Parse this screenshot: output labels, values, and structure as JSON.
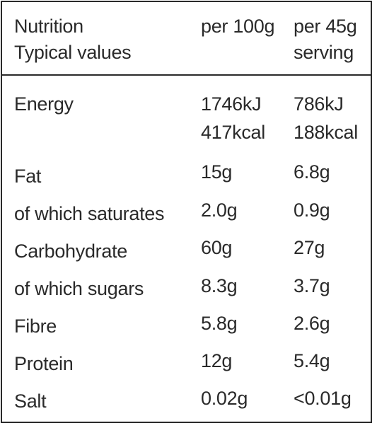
{
  "header": {
    "title_line1": "Nutrition",
    "title_line2": "Typical values",
    "col_per100_line1": "per 100g",
    "col_serving_line1": "per 45g",
    "col_serving_line2": "serving"
  },
  "rows": [
    {
      "label": "Energy",
      "per100": "1746kJ",
      "per100_extra": "417kcal",
      "serving": "786kJ",
      "serving_extra": "188kcal"
    },
    {
      "label": "Fat",
      "per100": "15g",
      "serving": "6.8g"
    },
    {
      "label": "of which saturates",
      "per100": "2.0g",
      "serving": "0.9g"
    },
    {
      "label": "Carbohydrate",
      "per100": "60g",
      "serving": "27g"
    },
    {
      "label": "of which sugars",
      "per100": "8.3g",
      "serving": "3.7g"
    },
    {
      "label": "Fibre",
      "per100": "5.8g",
      "serving": "2.6g"
    },
    {
      "label": "Protein",
      "per100": "12g",
      "serving": "5.4g"
    },
    {
      "label": "Salt",
      "per100": "0.02g",
      "serving": "<0.01g"
    }
  ]
}
